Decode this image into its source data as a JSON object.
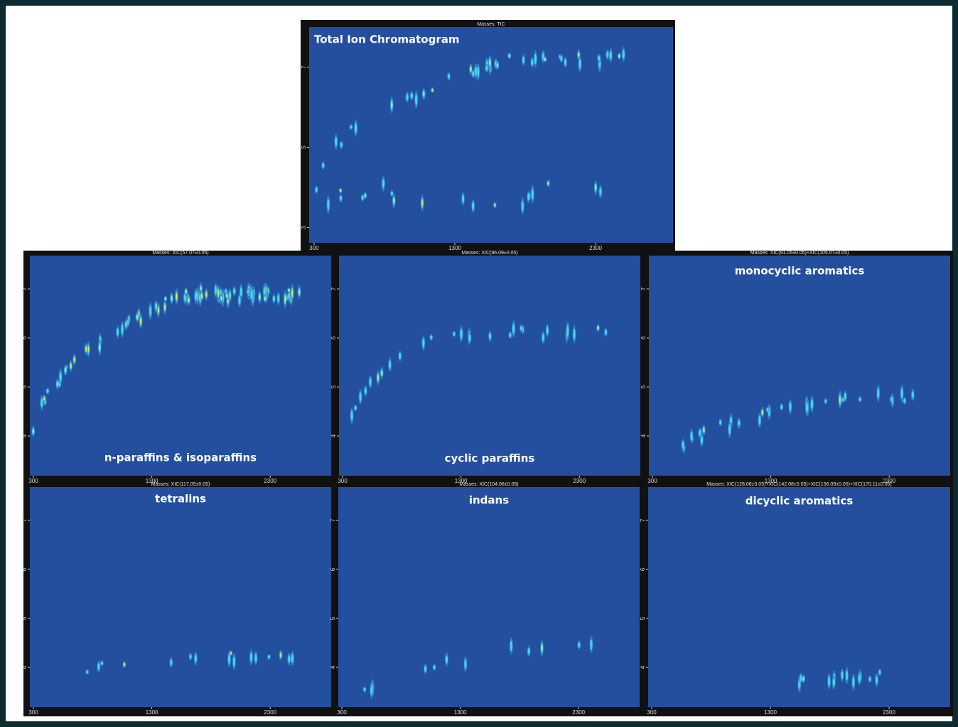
{
  "panels": [
    {
      "header": "Masses: TIC",
      "title": "Total Ion Chromatogram",
      "xlim": [
        265,
        2850
      ],
      "ylim": [
        2.62,
        8.0
      ],
      "xticks": [
        300,
        1300,
        2300
      ],
      "yticks": [
        7,
        5,
        3
      ]
    },
    {
      "header": "Masses: XIC(57.07±0.05)",
      "title": "n-paraffins & isoparaffins",
      "xlim": [
        270,
        2815
      ],
      "ylim": [
        3.19,
        7.68
      ],
      "xticks": [
        300,
        1300,
        2300
      ],
      "yticks": [
        7,
        6,
        5,
        4
      ]
    },
    {
      "header": "Masses: XIC(96.09±0.05)",
      "title": "cyclic paraffins",
      "xlim": [
        270,
        2815
      ],
      "ylim": [
        3.19,
        7.68
      ],
      "xticks": [
        300,
        1300,
        2300
      ],
      "yticks": [
        7,
        6,
        5,
        4
      ]
    },
    {
      "header": "Masses: XIC(91.05±0.05)+XIC(105.07±0.05)",
      "title": "monocyclic aromatics",
      "xlim": [
        270,
        2815
      ],
      "ylim": [
        3.19,
        7.68
      ],
      "xticks": [
        300,
        1300,
        2300
      ],
      "yticks": [
        7,
        6,
        5,
        4
      ]
    },
    {
      "header": "Masses: XIC(117.05±0.05)",
      "title": "tetralins",
      "xlim": [
        270,
        2815
      ],
      "ylim": [
        3.19,
        7.68
      ],
      "xticks": [
        300,
        1300,
        2300
      ],
      "yticks": [
        7,
        6,
        5,
        4
      ]
    },
    {
      "header": "Masses: XIC(104.06±0.05)",
      "title": "indans",
      "xlim": [
        270,
        2815
      ],
      "ylim": [
        3.19,
        7.68
      ],
      "xticks": [
        300,
        1300,
        2300
      ],
      "yticks": [
        7,
        6,
        5,
        4
      ]
    },
    {
      "header": "Masses: XIC(128.06±0.05)+XIC(142.08±0.05)+XIC(156.09±0.05)+XIC(170.11±0.05)",
      "title": "dicyclic aromatics",
      "xlim": [
        270,
        2815
      ],
      "ylim": [
        3.19,
        7.68
      ],
      "xticks": [
        300,
        1300,
        2300
      ],
      "yticks": [
        7,
        6,
        5,
        4
      ]
    }
  ]
}
